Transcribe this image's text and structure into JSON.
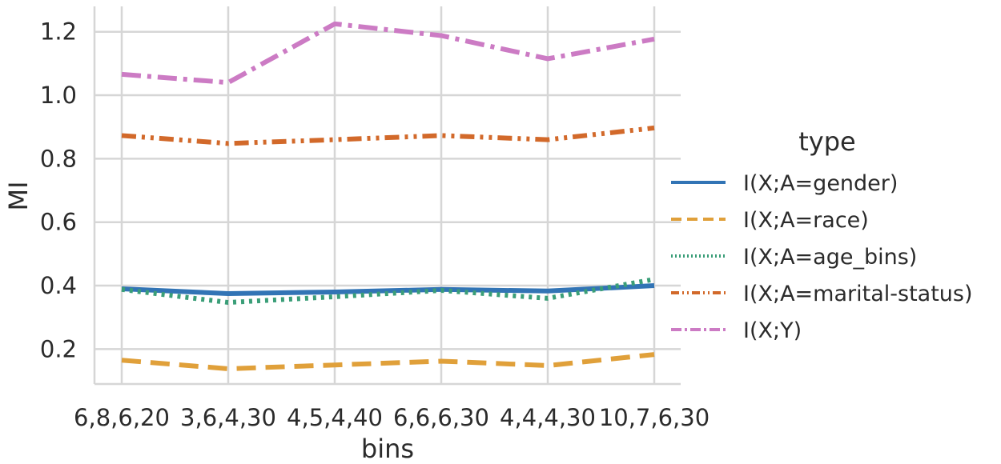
{
  "chart_data": {
    "type": "line",
    "xlabel": "bins",
    "ylabel": "MI",
    "categories": [
      "6,8,6,20",
      "3,6,4,30",
      "4,5,4,40",
      "6,6,6,30",
      "4,4,4,30",
      "10,7,6,30"
    ],
    "ylim": [
      0.09,
      1.28
    ],
    "yticks": [
      0.2,
      0.4,
      0.6,
      0.8,
      1.0,
      1.2
    ],
    "grid": true,
    "legend": {
      "title": "type",
      "placement": "right"
    },
    "series": [
      {
        "name": "I(X;A=gender)",
        "color": "#3274b5",
        "dash": "solid",
        "values": [
          0.39,
          0.375,
          0.38,
          0.388,
          0.383,
          0.4
        ]
      },
      {
        "name": "I(X;A=race)",
        "color": "#e0a03a",
        "dash": "dashed",
        "values": [
          0.165,
          0.138,
          0.15,
          0.162,
          0.148,
          0.183
        ]
      },
      {
        "name": "I(X;A=age_bins)",
        "color": "#3a9e78",
        "dash": "dotted",
        "values": [
          0.388,
          0.347,
          0.365,
          0.385,
          0.36,
          0.42
        ]
      },
      {
        "name": "I(X;A=marital-status)",
        "color": "#d2692a",
        "dash": "dashdotdot",
        "values": [
          0.873,
          0.848,
          0.86,
          0.873,
          0.86,
          0.897
        ]
      },
      {
        "name": "I(X;Y)",
        "color": "#cc7bc4",
        "dash": "dashdot",
        "values": [
          1.066,
          1.04,
          1.225,
          1.188,
          1.115,
          1.177
        ]
      }
    ]
  }
}
